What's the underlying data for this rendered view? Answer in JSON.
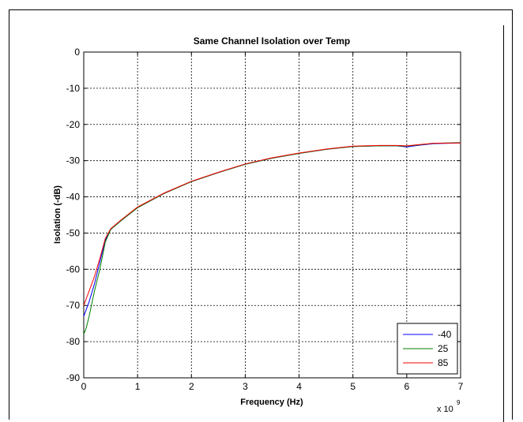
{
  "chart_data": {
    "type": "line",
    "title": "Same Channel Isolation over Temp",
    "xlabel": "Frequency (Hz)",
    "ylabel": "Isolation (-dB)",
    "x_exponent_base": "x 10",
    "x_exponent_power": "9",
    "xlim": [
      0,
      7
    ],
    "ylim": [
      -90,
      0
    ],
    "x_ticks": [
      0,
      1,
      2,
      3,
      4,
      5,
      6,
      7
    ],
    "y_ticks": [
      0,
      -10,
      -20,
      -30,
      -40,
      -50,
      -60,
      -70,
      -80,
      -90
    ],
    "grid": true,
    "legend_position": "bottom-right",
    "series": [
      {
        "name": "-40",
        "color": "#0000ff",
        "x": [
          0,
          0.05,
          0.1,
          0.2,
          0.3,
          0.4,
          0.5,
          0.7,
          1.0,
          1.5,
          2.0,
          2.5,
          3.0,
          3.5,
          4.0,
          4.5,
          5.0,
          5.5,
          5.8,
          6.0,
          6.2,
          6.5,
          7.0
        ],
        "y": [
          -73,
          -71,
          -69,
          -64,
          -58,
          -52,
          -49,
          -46.5,
          -43,
          -39,
          -35.8,
          -33.3,
          -31,
          -29.3,
          -28,
          -26.9,
          -26.1,
          -25.9,
          -25.9,
          -26.2,
          -25.8,
          -25.3,
          -25.1
        ]
      },
      {
        "name": "25",
        "color": "#008000",
        "x": [
          0,
          0.05,
          0.1,
          0.2,
          0.3,
          0.4,
          0.5,
          0.7,
          1.0,
          1.5,
          2.0,
          2.5,
          3.0,
          3.5,
          4.0,
          4.5,
          5.0,
          5.5,
          5.8,
          6.0,
          6.2,
          6.5,
          7.0
        ],
        "y": [
          -78,
          -76,
          -73,
          -66,
          -60,
          -52.5,
          -49,
          -46.5,
          -43,
          -39,
          -35.8,
          -33.3,
          -31,
          -29.3,
          -28,
          -26.9,
          -26.1,
          -25.9,
          -25.9,
          -26,
          -25.7,
          -25.2,
          -25
        ]
      },
      {
        "name": "85",
        "color": "#ff0000",
        "x": [
          0,
          0.05,
          0.1,
          0.2,
          0.3,
          0.4,
          0.5,
          0.7,
          1.0,
          1.5,
          2.0,
          2.5,
          3.0,
          3.5,
          4.0,
          4.5,
          5.0,
          5.5,
          5.8,
          6.0,
          6.2,
          6.5,
          7.0
        ],
        "y": [
          -70,
          -68,
          -66,
          -62,
          -57,
          -51.5,
          -48.8,
          -46.3,
          -42.8,
          -38.9,
          -35.7,
          -33.2,
          -30.9,
          -29.2,
          -27.9,
          -26.8,
          -26,
          -25.8,
          -25.8,
          -25.9,
          -25.6,
          -25.2,
          -25.1
        ]
      }
    ]
  }
}
